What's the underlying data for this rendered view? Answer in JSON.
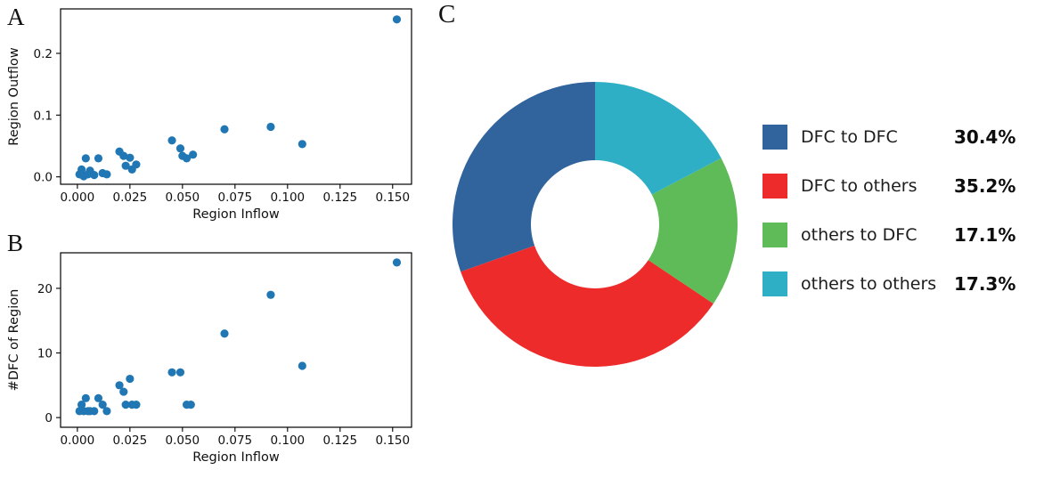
{
  "figure": {
    "background": "#ffffff",
    "panel_labels": {
      "a": "A",
      "b": "B",
      "c": "C"
    }
  },
  "chart_data": [
    {
      "id": "panel_a",
      "type": "scatter",
      "panel_label": "A",
      "xlabel": "Region Inflow",
      "ylabel": "Region Outflow",
      "xlim": [
        -0.008,
        0.159
      ],
      "ylim": [
        -0.012,
        0.272
      ],
      "xticks": [
        0.0,
        0.025,
        0.05,
        0.075,
        0.1,
        0.125,
        0.15
      ],
      "xtick_labels": [
        "0.000",
        "0.025",
        "0.050",
        "0.075",
        "0.100",
        "0.125",
        "0.150"
      ],
      "yticks": [
        0.0,
        0.1,
        0.2
      ],
      "ytick_labels": [
        "0.0",
        "0.1",
        "0.2"
      ],
      "grid": false,
      "marker_color": "#2077b4",
      "points": [
        [
          0.001,
          0.004
        ],
        [
          0.002,
          0.012
        ],
        [
          0.003,
          0.001
        ],
        [
          0.004,
          0.03
        ],
        [
          0.005,
          0.004
        ],
        [
          0.006,
          0.01
        ],
        [
          0.008,
          0.003
        ],
        [
          0.01,
          0.03
        ],
        [
          0.012,
          0.006
        ],
        [
          0.014,
          0.004
        ],
        [
          0.02,
          0.041
        ],
        [
          0.022,
          0.034
        ],
        [
          0.023,
          0.018
        ],
        [
          0.025,
          0.031
        ],
        [
          0.026,
          0.012
        ],
        [
          0.028,
          0.02
        ],
        [
          0.045,
          0.059
        ],
        [
          0.049,
          0.046
        ],
        [
          0.05,
          0.034
        ],
        [
          0.052,
          0.03
        ],
        [
          0.055,
          0.036
        ],
        [
          0.07,
          0.077
        ],
        [
          0.092,
          0.081
        ],
        [
          0.107,
          0.053
        ],
        [
          0.152,
          0.255
        ]
      ]
    },
    {
      "id": "panel_b",
      "type": "scatter",
      "panel_label": "B",
      "xlabel": "Region Inflow",
      "ylabel": "#DFC of Region",
      "xlim": [
        -0.008,
        0.159
      ],
      "ylim": [
        -1.5,
        25.5
      ],
      "xticks": [
        0.0,
        0.025,
        0.05,
        0.075,
        0.1,
        0.125,
        0.15
      ],
      "xtick_labels": [
        "0.000",
        "0.025",
        "0.050",
        "0.075",
        "0.100",
        "0.125",
        "0.150"
      ],
      "yticks": [
        0,
        10,
        20
      ],
      "ytick_labels": [
        "0",
        "10",
        "20"
      ],
      "grid": false,
      "marker_color": "#2077b4",
      "points": [
        [
          0.001,
          1
        ],
        [
          0.002,
          2
        ],
        [
          0.003,
          1
        ],
        [
          0.004,
          3
        ],
        [
          0.005,
          1
        ],
        [
          0.006,
          1
        ],
        [
          0.008,
          1
        ],
        [
          0.01,
          3
        ],
        [
          0.012,
          2
        ],
        [
          0.014,
          1
        ],
        [
          0.02,
          5
        ],
        [
          0.022,
          4
        ],
        [
          0.023,
          2
        ],
        [
          0.025,
          6
        ],
        [
          0.026,
          2
        ],
        [
          0.028,
          2
        ],
        [
          0.045,
          7
        ],
        [
          0.049,
          7
        ],
        [
          0.052,
          2
        ],
        [
          0.054,
          2
        ],
        [
          0.07,
          13
        ],
        [
          0.092,
          19
        ],
        [
          0.107,
          8
        ],
        [
          0.152,
          24
        ]
      ]
    },
    {
      "id": "panel_c",
      "type": "pie",
      "panel_label": "C",
      "donut": true,
      "start_angle": 90,
      "direction": "counterclockwise",
      "legend_position": "right",
      "slices": [
        {
          "label": "DFC to DFC",
          "value": 30.4,
          "display": "30.4%",
          "color": "#31639c"
        },
        {
          "label": "DFC to others",
          "value": 35.2,
          "display": "35.2%",
          "color": "#ed2b2b"
        },
        {
          "label": "others to DFC",
          "value": 17.1,
          "display": "17.1%",
          "color": "#5fbb57"
        },
        {
          "label": "others to others",
          "value": 17.3,
          "display": "17.3%",
          "color": "#2fafc6"
        }
      ]
    }
  ]
}
